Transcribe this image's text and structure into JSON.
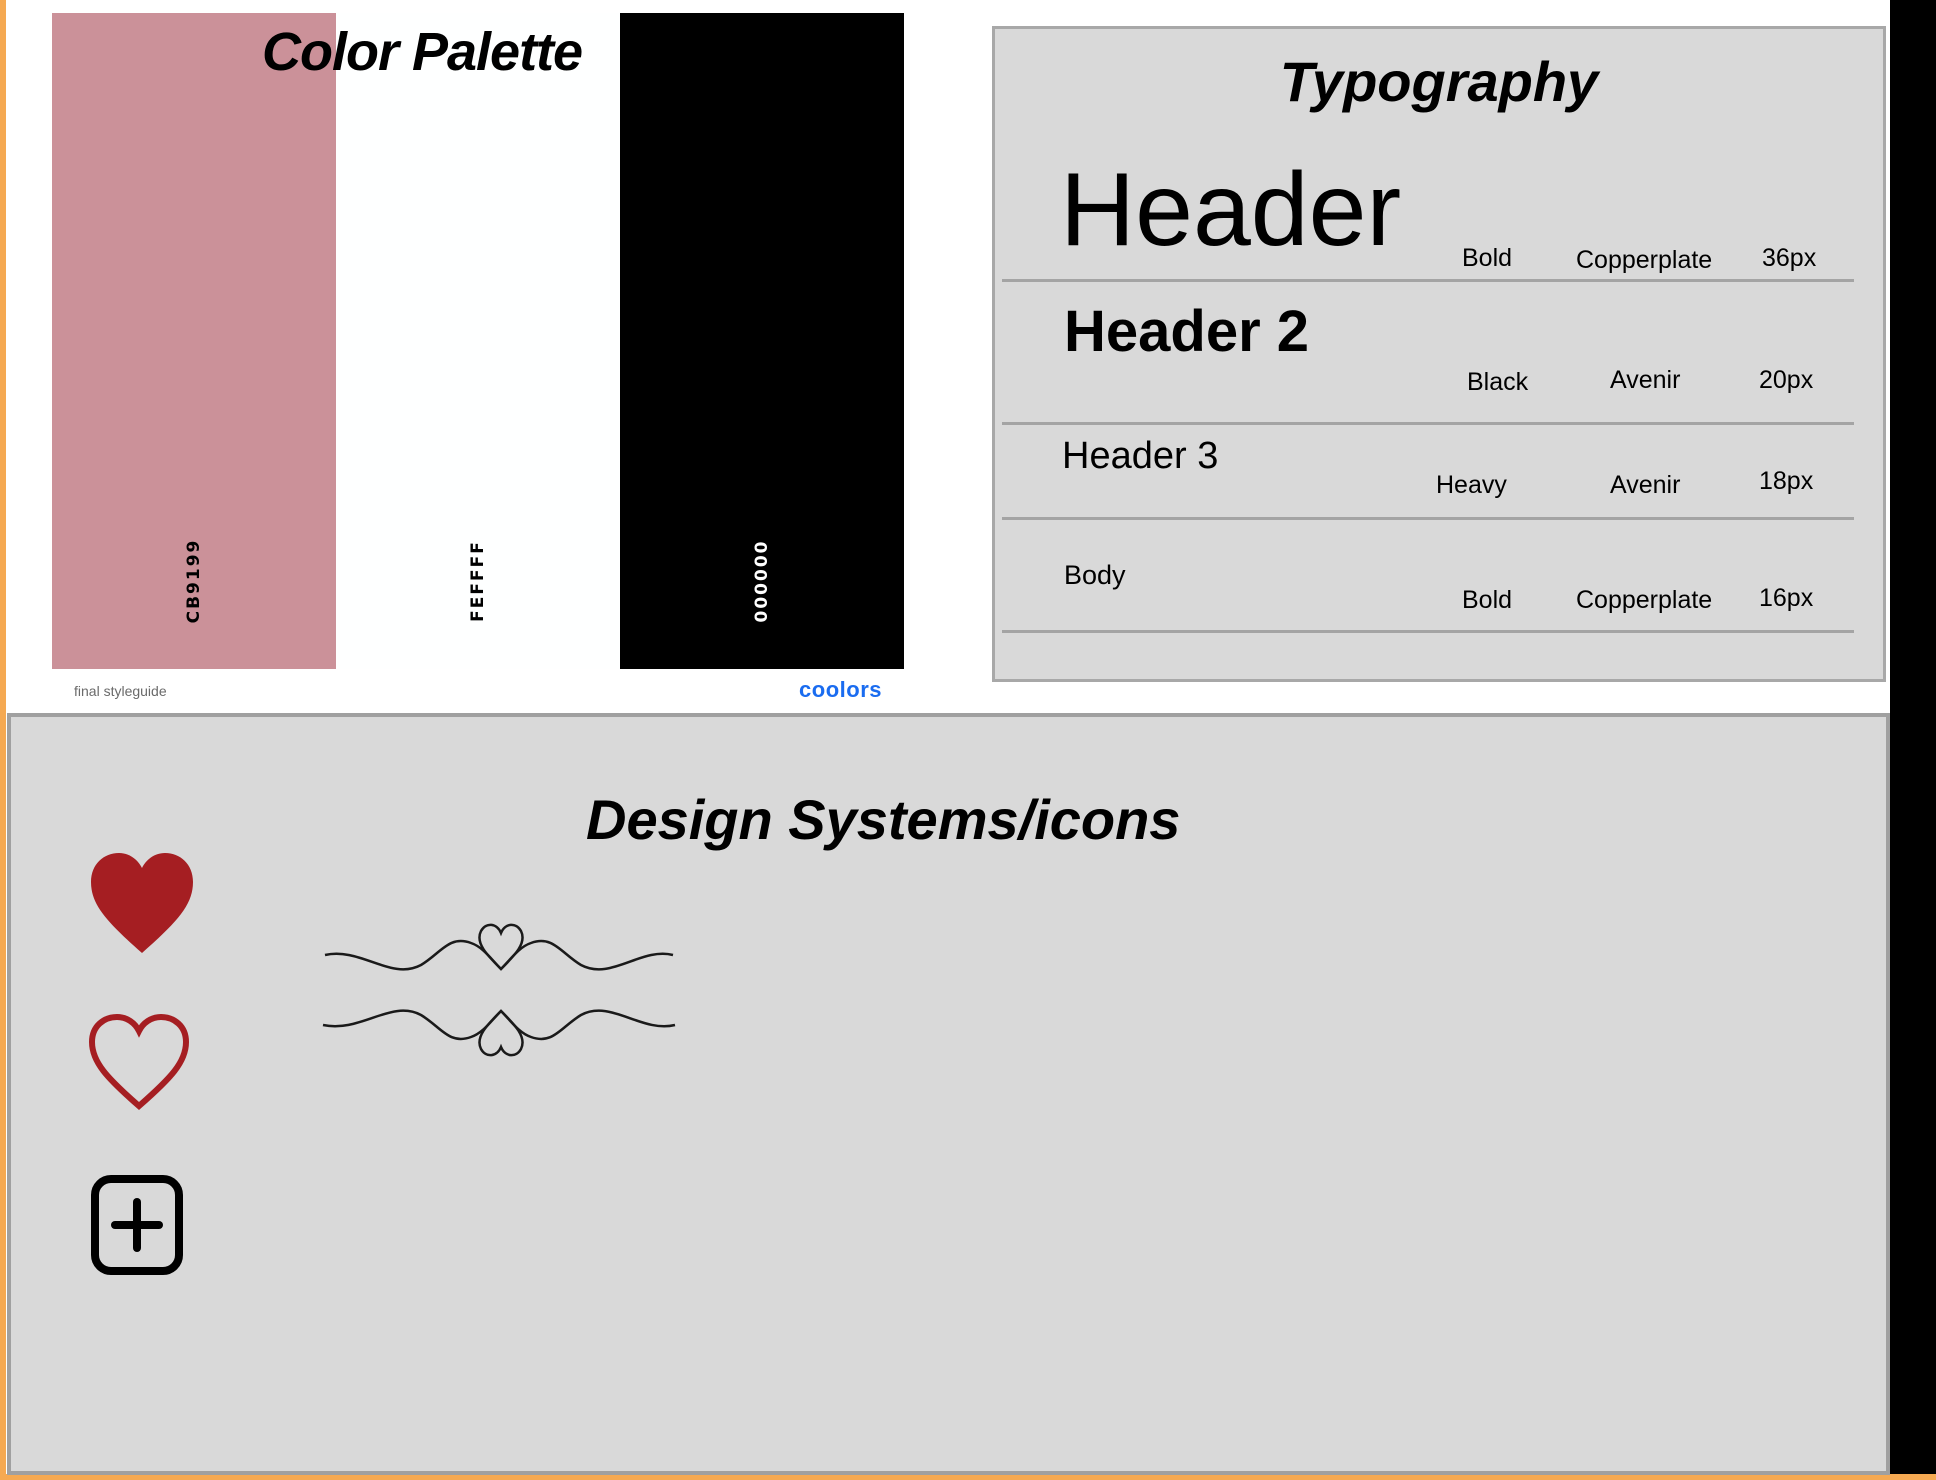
{
  "palette": {
    "title": "Color Palette",
    "swatches": [
      {
        "code": "CB9199",
        "color": "#cb9199",
        "text_color": "#000000"
      },
      {
        "code": "FEFFFF",
        "color": "#feffff",
        "text_color": "#000000"
      },
      {
        "code": "000000",
        "color": "#000000",
        "text_color": "#ffffff"
      }
    ],
    "footer_left": "final styleguide",
    "footer_right": "coolors"
  },
  "typography": {
    "title": "Typography",
    "rows": [
      {
        "sample": "Header",
        "weight": "Bold",
        "font": "Copperplate",
        "size": "36px"
      },
      {
        "sample": "Header 2",
        "weight": "Black",
        "font": "Avenir",
        "size": "20px"
      },
      {
        "sample": "Header 3",
        "weight": "Heavy",
        "font": "Avenir",
        "size": "18px"
      },
      {
        "sample": "Body",
        "weight": "Bold",
        "font": "Copperplate",
        "size": "16px"
      }
    ]
  },
  "design_systems": {
    "title": "Design Systems/icons",
    "icons": [
      "heart-filled-icon",
      "heart-outline-icon",
      "plus-square-icon",
      "heart-flourish-divider-icon"
    ],
    "icon_color": "#a51e22"
  }
}
